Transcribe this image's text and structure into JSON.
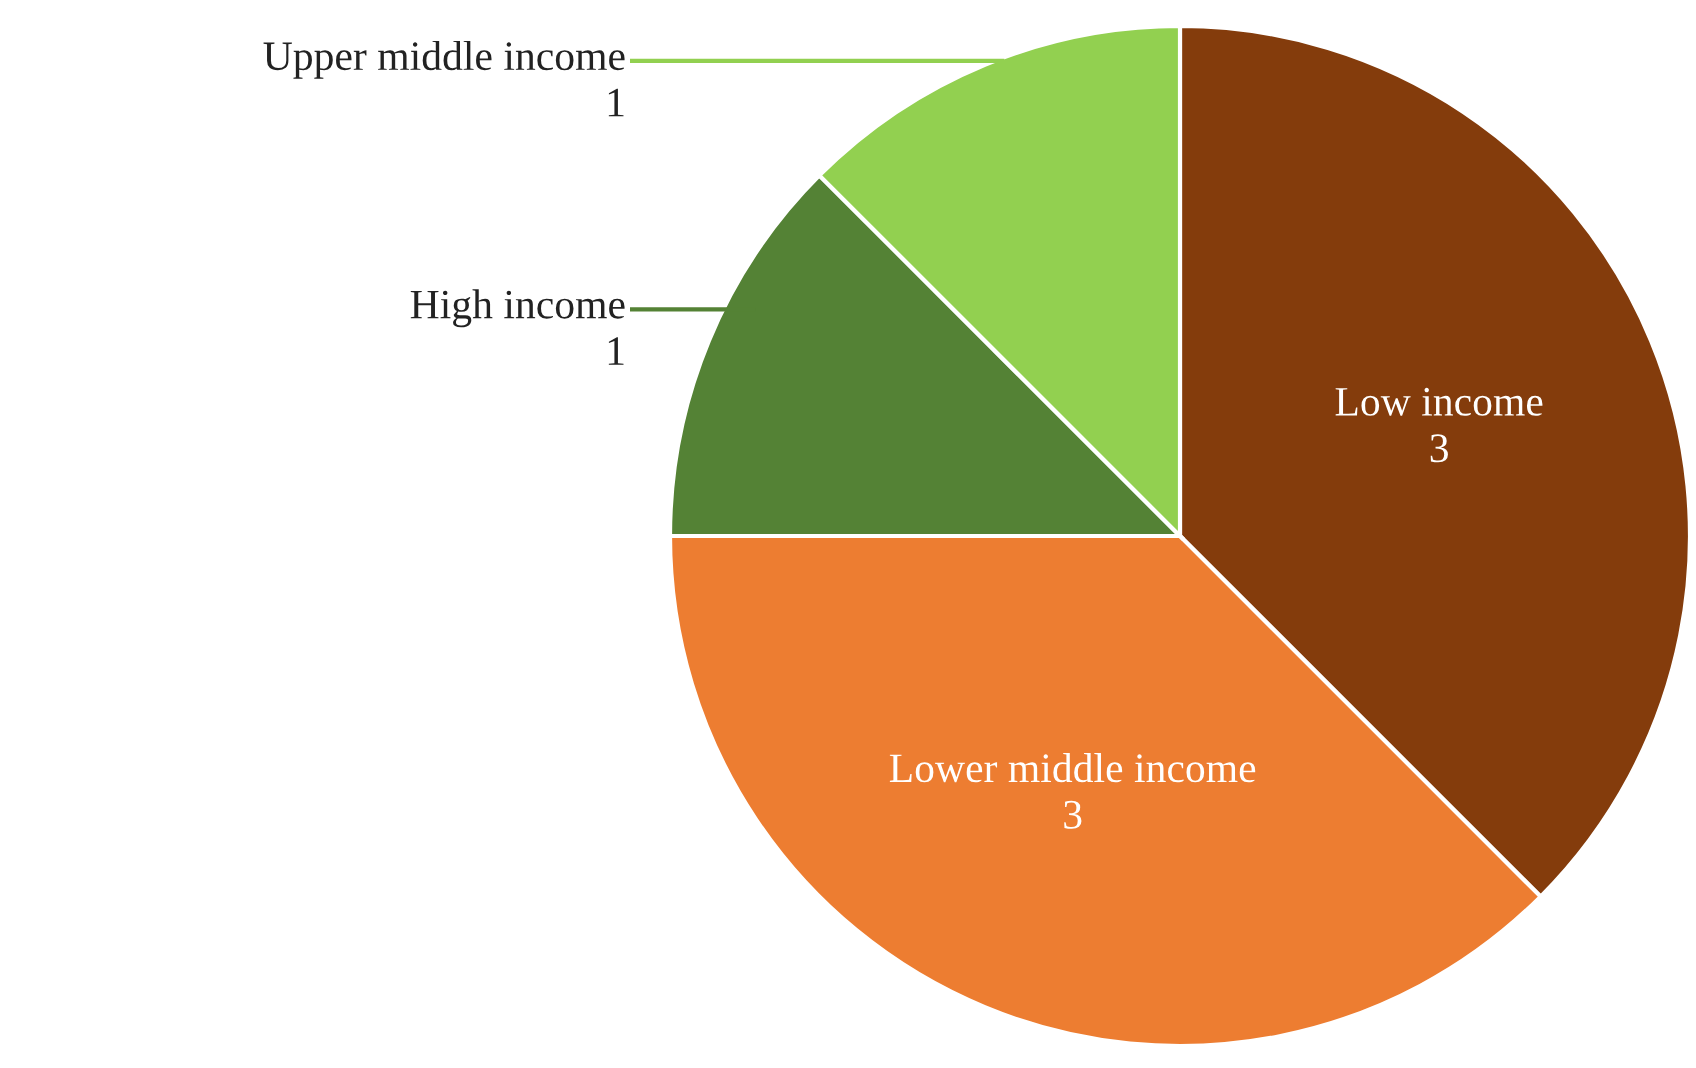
{
  "chart_data": {
    "type": "pie",
    "categories": [
      "Low income",
      "Lower middle income",
      "High income",
      "Upper middle income"
    ],
    "values": [
      3,
      3,
      1,
      1
    ],
    "colors": [
      "#843c0c",
      "#ed7d31",
      "#548235",
      "#92d050"
    ],
    "data_labels": true,
    "legend": false
  }
}
